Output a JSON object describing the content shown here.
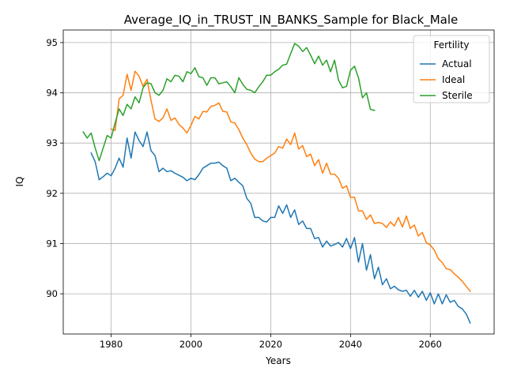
{
  "chart_data": {
    "type": "line",
    "title": "Average_IQ_in_TRUST_IN_BANKS_Sample for Black_Male",
    "xlabel": "Years",
    "ylabel": "IQ",
    "xlim": [
      1968,
      2076
    ],
    "ylim": [
      89.2,
      95.25
    ],
    "x_ticks": [
      1980,
      2000,
      2020,
      2040,
      2060
    ],
    "y_ticks": [
      90,
      91,
      92,
      93,
      94,
      95
    ],
    "grid": true,
    "legend": {
      "title": "Fertility",
      "placement": "top-right"
    },
    "series": [
      {
        "name": "Actual",
        "color": "#1f77b4",
        "x": [
          1975,
          1976,
          1977,
          1978,
          1979,
          1980,
          1981,
          1982,
          1983,
          1984,
          1985,
          1986,
          1987,
          1988,
          1989,
          1990,
          1991,
          1992,
          1993,
          1994,
          1995,
          1996,
          1997,
          1998,
          1999,
          2000,
          2001,
          2002,
          2003,
          2004,
          2005,
          2006,
          2007,
          2008,
          2009,
          2010,
          2011,
          2012,
          2013,
          2014,
          2015,
          2016,
          2017,
          2018,
          2019,
          2020,
          2021,
          2022,
          2023,
          2024,
          2025,
          2026,
          2027,
          2028,
          2029,
          2030,
          2031,
          2032,
          2033,
          2034,
          2035,
          2036,
          2037,
          2038,
          2039,
          2040,
          2041,
          2042,
          2043,
          2044,
          2045,
          2046,
          2047,
          2048,
          2049,
          2050,
          2051,
          2052,
          2053,
          2054,
          2055,
          2056,
          2057,
          2058,
          2059,
          2060,
          2061,
          2062,
          2063,
          2064,
          2065,
          2066,
          2067,
          2068,
          2069,
          2070
        ],
        "values": [
          92.8,
          92.63,
          92.27,
          92.33,
          92.4,
          92.35,
          92.5,
          92.7,
          92.52,
          93.1,
          92.7,
          93.22,
          93.05,
          92.93,
          93.22,
          92.85,
          92.75,
          92.43,
          92.5,
          92.43,
          92.45,
          92.4,
          92.36,
          92.32,
          92.25,
          92.3,
          92.27,
          92.37,
          92.5,
          92.55,
          92.6,
          92.6,
          92.62,
          92.55,
          92.5,
          92.25,
          92.3,
          92.22,
          92.15,
          91.9,
          91.8,
          91.52,
          91.52,
          91.45,
          91.43,
          91.52,
          91.52,
          91.75,
          91.6,
          91.77,
          91.52,
          91.67,
          91.38,
          91.45,
          91.3,
          91.3,
          91.1,
          91.12,
          90.93,
          91.05,
          90.95,
          90.98,
          91.02,
          90.93,
          91.1,
          90.9,
          91.12,
          90.63,
          91.0,
          90.47,
          90.78,
          90.3,
          90.53,
          90.18,
          90.3,
          90.1,
          90.15,
          90.08,
          90.05,
          90.07,
          89.95,
          90.07,
          89.93,
          90.05,
          89.87,
          90.02,
          89.8,
          90.0,
          89.8,
          89.98,
          89.83,
          89.87,
          89.75,
          89.7,
          89.6,
          89.42
        ]
      },
      {
        "name": "Ideal",
        "color": "#ff7f0e",
        "x": [
          1980,
          1981,
          1982,
          1983,
          1984,
          1985,
          1986,
          1987,
          1988,
          1989,
          1990,
          1991,
          1992,
          1993,
          1994,
          1995,
          1996,
          1997,
          1998,
          1999,
          2000,
          2001,
          2002,
          2003,
          2004,
          2005,
          2006,
          2007,
          2008,
          2009,
          2010,
          2011,
          2012,
          2013,
          2014,
          2015,
          2016,
          2017,
          2018,
          2019,
          2020,
          2021,
          2022,
          2023,
          2024,
          2025,
          2026,
          2027,
          2028,
          2029,
          2030,
          2031,
          2032,
          2033,
          2034,
          2035,
          2036,
          2037,
          2038,
          2039,
          2040,
          2041,
          2042,
          2043,
          2044,
          2045,
          2046,
          2047,
          2048,
          2049,
          2050,
          2051,
          2052,
          2053,
          2054,
          2055,
          2056,
          2057,
          2058,
          2059,
          2060,
          2061,
          2062,
          2063,
          2064,
          2065,
          2066,
          2067,
          2068,
          2069,
          2070
        ],
        "values": [
          93.28,
          93.25,
          93.88,
          93.95,
          94.37,
          94.05,
          94.43,
          94.33,
          94.13,
          94.27,
          93.85,
          93.48,
          93.43,
          93.5,
          93.68,
          93.45,
          93.5,
          93.37,
          93.3,
          93.2,
          93.35,
          93.53,
          93.48,
          93.63,
          93.62,
          93.73,
          93.75,
          93.8,
          93.63,
          93.62,
          93.42,
          93.4,
          93.27,
          93.1,
          92.97,
          92.8,
          92.68,
          92.63,
          92.63,
          92.7,
          92.75,
          92.8,
          92.93,
          92.9,
          93.08,
          92.97,
          93.2,
          92.88,
          92.95,
          92.73,
          92.78,
          92.55,
          92.67,
          92.4,
          92.6,
          92.38,
          92.38,
          92.3,
          92.1,
          92.15,
          91.92,
          91.92,
          91.65,
          91.65,
          91.48,
          91.57,
          91.4,
          91.42,
          91.4,
          91.32,
          91.43,
          91.35,
          91.52,
          91.33,
          91.55,
          91.3,
          91.37,
          91.15,
          91.22,
          91.02,
          90.97,
          90.87,
          90.7,
          90.62,
          90.5,
          90.48,
          90.4,
          90.33,
          90.25,
          90.15,
          90.05
        ]
      },
      {
        "name": "Sterile",
        "color": "#2ca02c",
        "x": [
          1973,
          1974,
          1975,
          1976,
          1977,
          1978,
          1979,
          1980,
          1981,
          1982,
          1983,
          1984,
          1985,
          1986,
          1987,
          1988,
          1989,
          1990,
          1991,
          1992,
          1993,
          1994,
          1995,
          1996,
          1997,
          1998,
          1999,
          2000,
          2001,
          2002,
          2003,
          2004,
          2005,
          2006,
          2007,
          2008,
          2009,
          2010,
          2011,
          2012,
          2013,
          2014,
          2015,
          2016,
          2017,
          2018,
          2019,
          2020,
          2021,
          2022,
          2023,
          2024,
          2025,
          2026,
          2027,
          2028,
          2029,
          2030,
          2031,
          2032,
          2033,
          2034,
          2035,
          2036,
          2037,
          2038,
          2039,
          2040,
          2041,
          2042,
          2043,
          2044,
          2045,
          2046,
          2047
        ],
        "values": [
          93.22,
          93.1,
          93.2,
          92.9,
          92.65,
          92.9,
          93.15,
          93.1,
          93.4,
          93.68,
          93.55,
          93.77,
          93.68,
          93.92,
          93.8,
          94.1,
          94.2,
          94.18,
          94.0,
          93.95,
          94.05,
          94.28,
          94.22,
          94.35,
          94.33,
          94.22,
          94.42,
          94.38,
          94.5,
          94.32,
          94.3,
          94.15,
          94.3,
          94.3,
          94.18,
          94.2,
          94.22,
          94.12,
          94.0,
          94.3,
          94.17,
          94.07,
          94.05,
          94.0,
          94.12,
          94.22,
          94.35,
          94.35,
          94.42,
          94.47,
          94.55,
          94.57,
          94.78,
          94.98,
          94.93,
          94.82,
          94.9,
          94.75,
          94.58,
          94.73,
          94.55,
          94.65,
          94.42,
          94.65,
          94.25,
          94.1,
          94.13,
          94.45,
          94.53,
          94.3,
          93.9,
          94.0,
          93.67,
          93.65,
          null
        ]
      }
    ]
  }
}
